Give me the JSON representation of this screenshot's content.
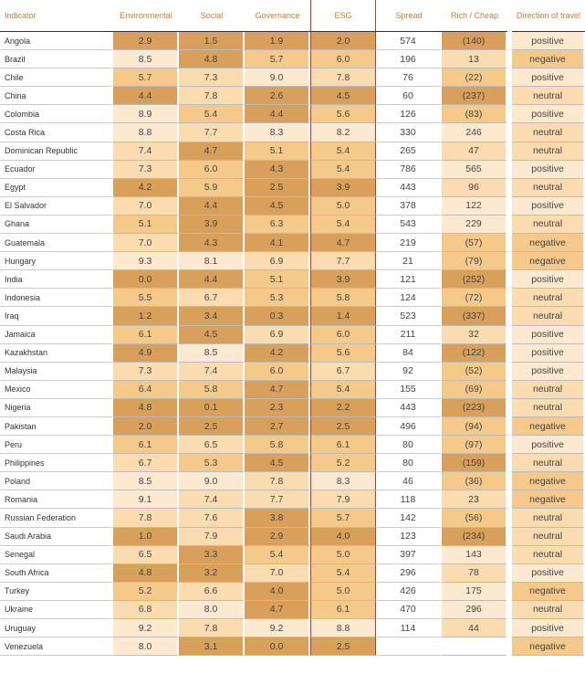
{
  "headers": {
    "indicator": "Indicator",
    "environmental": "Environmental",
    "social": "Social",
    "governance": "Governance",
    "esg": "ESG",
    "spread": "Spread",
    "rich_cheap": "Rich / Cheap",
    "direction": "Direction of travel"
  },
  "rows": [
    {
      "country": "Angola",
      "env": "2.9",
      "soc": "1.5",
      "gov": "1.9",
      "esg": "2.0",
      "spread": "574",
      "rc": "(140)",
      "dir": "positive"
    },
    {
      "country": "Brazil",
      "env": "8.5",
      "soc": "4.8",
      "gov": "5.7",
      "esg": "6.0",
      "spread": "196",
      "rc": "13",
      "dir": "negative"
    },
    {
      "country": "Chile",
      "env": "5.7",
      "soc": "7.3",
      "gov": "9.0",
      "esg": "7.8",
      "spread": "76",
      "rc": "(22)",
      "dir": "positive"
    },
    {
      "country": "China",
      "env": "4.4",
      "soc": "7.8",
      "gov": "2.6",
      "esg": "4.5",
      "spread": "60",
      "rc": "(237)",
      "dir": "neutral"
    },
    {
      "country": "Colombia",
      "env": "8.9",
      "soc": "5.4",
      "gov": "4.4",
      "esg": "5.6",
      "spread": "126",
      "rc": "(83)",
      "dir": "positive"
    },
    {
      "country": "Costa Rica",
      "env": "8.8",
      "soc": "7.7",
      "gov": "8.3",
      "esg": "8.2",
      "spread": "330",
      "rc": "246",
      "dir": "neutral"
    },
    {
      "country": "Dominican Republic",
      "env": "7.4",
      "soc": "4.7",
      "gov": "5.1",
      "esg": "5.4",
      "spread": "265",
      "rc": "47",
      "dir": "neutral"
    },
    {
      "country": "Ecuador",
      "env": "7.3",
      "soc": "6.0",
      "gov": "4.3",
      "esg": "5.4",
      "spread": "786",
      "rc": "565",
      "dir": "positive"
    },
    {
      "country": "Egypt",
      "env": "4.2",
      "soc": "5.9",
      "gov": "2.5",
      "esg": "3.9",
      "spread": "443",
      "rc": "96",
      "dir": "neutral"
    },
    {
      "country": "El Salvador",
      "env": "7.0",
      "soc": "4.4",
      "gov": "4.5",
      "esg": "5.0",
      "spread": "378",
      "rc": "122",
      "dir": "positive"
    },
    {
      "country": "Ghana",
      "env": "5.1",
      "soc": "3.9",
      "gov": "6.3",
      "esg": "5.4",
      "spread": "543",
      "rc": "229",
      "dir": "neutral"
    },
    {
      "country": "Guatemala",
      "env": "7.0",
      "soc": "4.3",
      "gov": "4.1",
      "esg": "4.7",
      "spread": "219",
      "rc": "(57)",
      "dir": "negative"
    },
    {
      "country": "Hungary",
      "env": "9.3",
      "soc": "8.1",
      "gov": "6.9",
      "esg": "7.7",
      "spread": "21",
      "rc": "(79)",
      "dir": "negative"
    },
    {
      "country": "India",
      "env": "0.0",
      "soc": "4.4",
      "gov": "5.1",
      "esg": "3.9",
      "spread": "121",
      "rc": "(252)",
      "dir": "positive"
    },
    {
      "country": "Indonesia",
      "env": "5.5",
      "soc": "6.7",
      "gov": "5.3",
      "esg": "5.8",
      "spread": "124",
      "rc": "(72)",
      "dir": "neutral"
    },
    {
      "country": "Iraq",
      "env": "1.2",
      "soc": "3.4",
      "gov": "0.3",
      "esg": "1.4",
      "spread": "523",
      "rc": "(337)",
      "dir": "neutral"
    },
    {
      "country": "Jamaica",
      "env": "6.1",
      "soc": "4.5",
      "gov": "6.9",
      "esg": "6.0",
      "spread": "211",
      "rc": "32",
      "dir": "positive"
    },
    {
      "country": "Kazakhstan",
      "env": "4.9",
      "soc": "8.5",
      "gov": "4.2",
      "esg": "5.6",
      "spread": "84",
      "rc": "(122)",
      "dir": "positive"
    },
    {
      "country": "Malaysia",
      "env": "7.3",
      "soc": "7.4",
      "gov": "6.0",
      "esg": "6.7",
      "spread": "92",
      "rc": "(52)",
      "dir": "positive"
    },
    {
      "country": "Mexico",
      "env": "6.4",
      "soc": "5.8",
      "gov": "4.7",
      "esg": "5.4",
      "spread": "155",
      "rc": "(69)",
      "dir": "neutral"
    },
    {
      "country": "Nigeria",
      "env": "4.8",
      "soc": "0.1",
      "gov": "2.3",
      "esg": "2.2",
      "spread": "443",
      "rc": "(223)",
      "dir": "neutral"
    },
    {
      "country": "Pakistan",
      "env": "2.0",
      "soc": "2.5",
      "gov": "2.7",
      "esg": "2.5",
      "spread": "496",
      "rc": "(94)",
      "dir": "negative"
    },
    {
      "country": "Peru",
      "env": "6.1",
      "soc": "6.5",
      "gov": "5.8",
      "esg": "6.1",
      "spread": "80",
      "rc": "(97)",
      "dir": "positive"
    },
    {
      "country": "Philippines",
      "env": "6.7",
      "soc": "5.3",
      "gov": "4.5",
      "esg": "5.2",
      "spread": "80",
      "rc": "(159)",
      "dir": "neutral"
    },
    {
      "country": "Poland",
      "env": "8.5",
      "soc": "9.0",
      "gov": "7.8",
      "esg": "8.3",
      "spread": "46",
      "rc": "(36)",
      "dir": "negative"
    },
    {
      "country": "Romania",
      "env": "9.1",
      "soc": "7.4",
      "gov": "7.7",
      "esg": "7.9",
      "spread": "118",
      "rc": "23",
      "dir": "negative"
    },
    {
      "country": "Russian Federation",
      "env": "7.8",
      "soc": "7.6",
      "gov": "3.8",
      "esg": "5.7",
      "spread": "142",
      "rc": "(56)",
      "dir": "neutral"
    },
    {
      "country": "Saudi Arabia",
      "env": "1.0",
      "soc": "7.9",
      "gov": "2.9",
      "esg": "4.0",
      "spread": "123",
      "rc": "(234)",
      "dir": "neutral"
    },
    {
      "country": "Senegal",
      "env": "6.5",
      "soc": "3.3",
      "gov": "5.4",
      "esg": "5.0",
      "spread": "397",
      "rc": "143",
      "dir": "neutral"
    },
    {
      "country": "South Africa",
      "env": "4.8",
      "soc": "3.2",
      "gov": "7.0",
      "esg": "5.4",
      "spread": "296",
      "rc": "78",
      "dir": "positive"
    },
    {
      "country": "Turkey",
      "env": "5.2",
      "soc": "6.6",
      "gov": "4.0",
      "esg": "5.0",
      "spread": "426",
      "rc": "175",
      "dir": "negative"
    },
    {
      "country": "Ukraine",
      "env": "6.8",
      "soc": "8.0",
      "gov": "4.7",
      "esg": "6.1",
      "spread": "470",
      "rc": "296",
      "dir": "neutral"
    },
    {
      "country": "Uruguay",
      "env": "9.2",
      "soc": "7.8",
      "gov": "9.2",
      "esg": "8.8",
      "spread": "114",
      "rc": "44",
      "dir": "positive"
    },
    {
      "country": "Venezuela",
      "env": "8.0",
      "soc": "3.1",
      "gov": "0.0",
      "esg": "2.5",
      "spread": "",
      "rc": "",
      "dir": "negative"
    }
  ],
  "colors": {
    "header_text": "#d9782d",
    "esg_border": "#c0392b",
    "shade_dark": "#d9a05b",
    "shade_mid": "#f5c98a",
    "shade_light": "#fbdbb0",
    "shade_pale": "#fde9d0"
  }
}
